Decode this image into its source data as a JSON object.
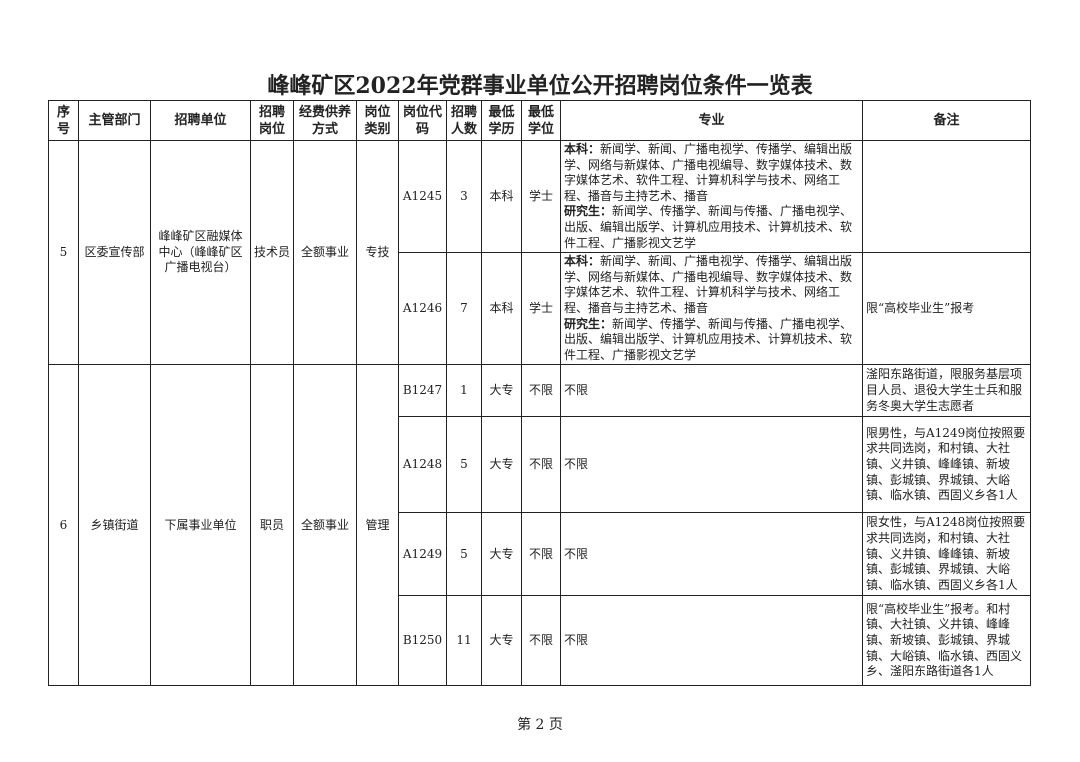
{
  "title": "峰峰矿区2022年党群事业单位公开招聘岗位条件一览表",
  "headers": [
    "序号",
    "主管部门",
    "招聘单位",
    "招聘岗位",
    "经费供养方式",
    "岗位类别",
    "岗位代码",
    "招聘人数",
    "最低学历",
    "最低学位",
    "专业",
    "备注"
  ],
  "groups": [
    {
      "no": "5",
      "dept": "区委宣传部",
      "unit": "峰峰矿区融媒体中心（峰峰矿区广播电视台）",
      "post": "技术员",
      "funding": "全额事业",
      "category": "专技",
      "rows": [
        {
          "code": "A1245",
          "count": "3",
          "edu": "本科",
          "degree": "学士",
          "major_bk_label": "本科：",
          "major_bk": "新闻学、新闻、广播电视学、传播学、编辑出版学、网络与新媒体、广播电视编导、数字媒体技术、数字媒体艺术、软件工程、计算机科学与技术、网络工程、播音与主持艺术、播音",
          "major_yjs_label": "研究生：",
          "major_yjs": "新闻学、传播学、新闻与传播、广播电视学、出版、编辑出版学、计算机应用技术、计算机技术、软件工程、广播影视文艺学",
          "note": ""
        },
        {
          "code": "A1246",
          "count": "7",
          "edu": "本科",
          "degree": "学士",
          "major_bk_label": "本科：",
          "major_bk": "新闻学、新闻、广播电视学、传播学、编辑出版学、网络与新媒体、广播电视编导、数字媒体技术、数字媒体艺术、软件工程、计算机科学与技术、网络工程、播音与主持艺术、播音",
          "major_yjs_label": "研究生：",
          "major_yjs": "新闻学、传播学、新闻与传播、广播电视学、出版、编辑出版学、计算机应用技术、计算机技术、软件工程、广播影视文艺学",
          "note": "限“高校毕业生”报考"
        }
      ]
    },
    {
      "no": "6",
      "dept": "乡镇街道",
      "unit": "下属事业单位",
      "post": "职员",
      "funding": "全额事业",
      "category": "管理",
      "rows": [
        {
          "code": "B1247",
          "count": "1",
          "edu": "大专",
          "degree": "不限",
          "major": "不限",
          "note": "滏阳东路街道，限服务基层项目人员、退役大学生士兵和服务冬奥大学生志愿者"
        },
        {
          "code": "A1248",
          "count": "5",
          "edu": "大专",
          "degree": "不限",
          "major": "不限",
          "note": "限男性，与A1249岗位按照要求共同选岗，和村镇、大社镇、义井镇、峰峰镇、新坡镇、彭城镇、界城镇、大峪镇、临水镇、西固义乡各1人"
        },
        {
          "code": "A1249",
          "count": "5",
          "edu": "大专",
          "degree": "不限",
          "major": "不限",
          "note": "限女性，与A1248岗位按照要求共同选岗，和村镇、大社镇、义井镇、峰峰镇、新坡镇、彭城镇、界城镇、大峪镇、临水镇、西固义乡各1人"
        },
        {
          "code": "B1250",
          "count": "11",
          "edu": "大专",
          "degree": "不限",
          "major": "不限",
          "note": "限“高校毕业生”报考。和村镇、大社镇、义井镇、峰峰镇、新坡镇、彭城镇、界城镇、大峪镇、临水镇、西固义乡、滏阳东路街道各1人"
        }
      ]
    }
  ],
  "footer": "第 2 页"
}
